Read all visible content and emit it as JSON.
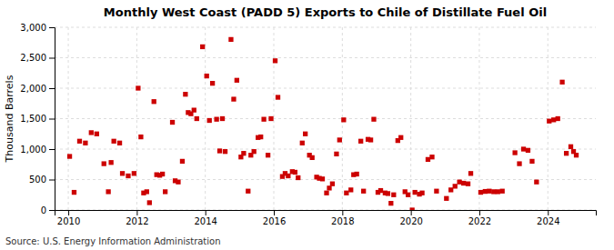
{
  "chart_data": {
    "type": "scatter",
    "title": "Monthly West Coast (PADD 5) Exports to Chile of Distillate Fuel Oil",
    "ylabel": "Thousand Barrels",
    "annotations": [
      "Source: U.S. Energy Information Administration"
    ],
    "color": "#cc0000",
    "marker": "square",
    "grid": true,
    "xlim": [
      2009.6,
      2025.4
    ],
    "ylim": [
      0,
      3000
    ],
    "xticks": [
      2010,
      2012,
      2014,
      2016,
      2018,
      2020,
      2022,
      2024
    ],
    "yticks": [
      0,
      500,
      {
        "value": 1000,
        "label": "1,000"
      },
      {
        "value": 1500,
        "label": "1,500"
      },
      {
        "value": 2000,
        "label": "2,000"
      },
      {
        "value": 2500,
        "label": "2,500"
      },
      {
        "value": 3000,
        "label": "3,000"
      }
    ],
    "x": [
      2010.04,
      2010.17,
      2010.33,
      2010.5,
      2010.67,
      2010.83,
      2011.04,
      2011.17,
      2011.25,
      2011.33,
      2011.5,
      2011.58,
      2011.75,
      2011.92,
      2012.04,
      2012.12,
      2012.2,
      2012.29,
      2012.37,
      2012.5,
      2012.58,
      2012.67,
      2012.75,
      2012.83,
      2013.04,
      2013.12,
      2013.21,
      2013.33,
      2013.42,
      2013.5,
      2013.58,
      2013.67,
      2013.75,
      2013.92,
      2014.04,
      2014.12,
      2014.21,
      2014.33,
      2014.42,
      2014.5,
      2014.58,
      2014.75,
      2014.83,
      2014.92,
      2015.04,
      2015.12,
      2015.25,
      2015.33,
      2015.42,
      2015.54,
      2015.62,
      2015.71,
      2015.83,
      2015.92,
      2016.04,
      2016.12,
      2016.25,
      2016.33,
      2016.42,
      2016.54,
      2016.62,
      2016.71,
      2016.83,
      2016.92,
      2017.04,
      2017.12,
      2017.25,
      2017.33,
      2017.42,
      2017.54,
      2017.62,
      2017.71,
      2017.83,
      2017.92,
      2018.04,
      2018.12,
      2018.25,
      2018.33,
      2018.42,
      2018.54,
      2018.62,
      2018.75,
      2018.83,
      2018.92,
      2019.04,
      2019.12,
      2019.25,
      2019.33,
      2019.42,
      2019.5,
      2019.62,
      2019.71,
      2019.83,
      2019.92,
      2020.04,
      2020.12,
      2020.25,
      2020.33,
      2020.5,
      2020.62,
      2020.75,
      2021.04,
      2021.17,
      2021.29,
      2021.42,
      2021.54,
      2021.67,
      2021.75,
      2022.04,
      2022.17,
      2022.29,
      2022.42,
      2022.54,
      2022.67,
      2023.04,
      2023.17,
      2023.29,
      2023.42,
      2023.54,
      2023.67,
      2024.04,
      2024.17,
      2024.29,
      2024.42,
      2024.54,
      2024.67,
      2024.75,
      2024.83
    ],
    "values": [
      880,
      290,
      1130,
      1100,
      1270,
      1250,
      760,
      300,
      780,
      1130,
      1100,
      600,
      560,
      600,
      2000,
      1200,
      280,
      300,
      120,
      1780,
      580,
      570,
      590,
      300,
      1440,
      480,
      460,
      800,
      1900,
      1600,
      1580,
      1640,
      1500,
      2680,
      2200,
      1470,
      2080,
      1490,
      970,
      1500,
      960,
      2800,
      1820,
      2130,
      870,
      930,
      310,
      900,
      960,
      1190,
      1200,
      1490,
      900,
      1500,
      2450,
      1850,
      550,
      600,
      560,
      630,
      620,
      530,
      1100,
      1250,
      900,
      860,
      540,
      520,
      510,
      280,
      360,
      430,
      920,
      1150,
      1480,
      280,
      330,
      580,
      590,
      1130,
      310,
      1160,
      1150,
      1490,
      290,
      320,
      280,
      270,
      110,
      250,
      1140,
      1190,
      300,
      250,
      0,
      290,
      260,
      280,
      830,
      870,
      310,
      190,
      330,
      390,
      460,
      440,
      430,
      600,
      290,
      305,
      310,
      300,
      300,
      310,
      940,
      760,
      1000,
      980,
      800,
      460,
      1460,
      1480,
      1500,
      2100,
      930,
      1040,
      960,
      900
    ]
  }
}
